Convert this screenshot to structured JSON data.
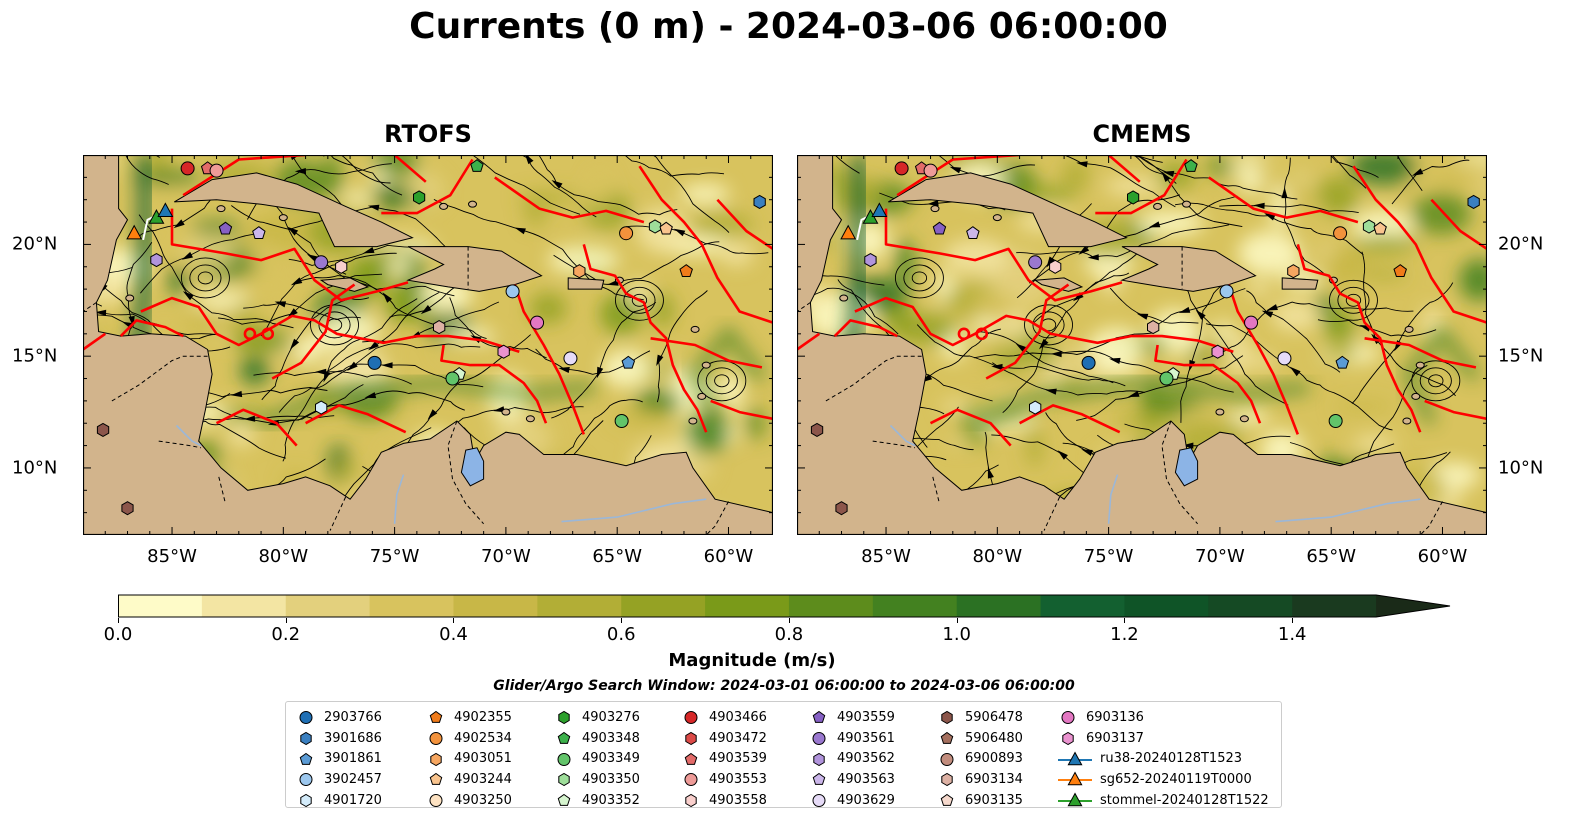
{
  "title": "Currents (0 m) - 2024-03-06 06:00:00",
  "panels": [
    {
      "title": "RTOFS",
      "seed": 7
    },
    {
      "title": "CMEMS",
      "seed": 23
    }
  ],
  "map": {
    "lon_range": [
      -89,
      -58
    ],
    "lat_range": [
      7,
      24
    ],
    "lon_ticks": [
      "85°W",
      "80°W",
      "75°W",
      "70°W",
      "65°W",
      "60°W"
    ],
    "lon_tick_values": [
      -85,
      -80,
      -75,
      -70,
      -65,
      -60
    ],
    "lat_ticks": [
      "20°N",
      "15°N",
      "10°N"
    ],
    "lat_tick_values": [
      20,
      15,
      10
    ],
    "colors": {
      "land": "#d2b48c",
      "boundary": "#ff0000",
      "streamline": "#000000",
      "lake": "#8cb4e6"
    }
  },
  "colorbar": {
    "label": "Magnitude (m/s)",
    "ticks": [
      "0.0",
      "0.2",
      "0.4",
      "0.6",
      "0.8",
      "1.0",
      "1.2",
      "1.4"
    ],
    "range": [
      0,
      1.5
    ],
    "colors": [
      "#fefbc8",
      "#f3e5a3",
      "#e3d07d",
      "#d8c35e",
      "#c8b747",
      "#b2ae36",
      "#95a224",
      "#7a9a19",
      "#5d8c1c",
      "#438120",
      "#2b7123",
      "#136030",
      "#0f5427",
      "#154a24",
      "#1a3a1f",
      "#1a2a18"
    ]
  },
  "search_window": "Glider/Argo Search Window: 2024-03-01 06:00:00 to 2024-03-06 06:00:00",
  "legend": [
    [
      {
        "label": "2903766",
        "marker": "circle",
        "color": "#1f6fb4"
      },
      {
        "label": "3901686",
        "marker": "hexagon",
        "color": "#3a7fc0"
      },
      {
        "label": "3901861",
        "marker": "pentagon",
        "color": "#5b9bd5"
      },
      {
        "label": "3902457",
        "marker": "circle",
        "color": "#9cc7ee"
      },
      {
        "label": "4901720",
        "marker": "hexagon",
        "color": "#d4ecfb"
      }
    ],
    [
      {
        "label": "4902355",
        "marker": "pentagon",
        "color": "#f07b1a"
      },
      {
        "label": "4902534",
        "marker": "circle",
        "color": "#f2923c"
      },
      {
        "label": "4903051",
        "marker": "hexagon",
        "color": "#f6a660"
      },
      {
        "label": "4903244",
        "marker": "pentagon",
        "color": "#f9c48e"
      },
      {
        "label": "4903250",
        "marker": "circle",
        "color": "#fde2c2"
      }
    ],
    [
      {
        "label": "4903276",
        "marker": "hexagon",
        "color": "#2ca02c"
      },
      {
        "label": "4903348",
        "marker": "pentagon",
        "color": "#3cb14b"
      },
      {
        "label": "4903349",
        "marker": "circle",
        "color": "#62c46a"
      },
      {
        "label": "4903350",
        "marker": "hexagon",
        "color": "#9ede9a"
      },
      {
        "label": "4903352",
        "marker": "pentagon",
        "color": "#d6f5cf"
      }
    ],
    [
      {
        "label": "4903466",
        "marker": "circle",
        "color": "#d62728"
      },
      {
        "label": "4903472",
        "marker": "hexagon",
        "color": "#dc4a47"
      },
      {
        "label": "4903539",
        "marker": "pentagon",
        "color": "#e36b69"
      },
      {
        "label": "4903553",
        "marker": "circle",
        "color": "#ee9b98"
      },
      {
        "label": "4903558",
        "marker": "hexagon",
        "color": "#f9cfcc"
      }
    ],
    [
      {
        "label": "4903559",
        "marker": "pentagon",
        "color": "#8660c4"
      },
      {
        "label": "4903561",
        "marker": "circle",
        "color": "#9a78cf"
      },
      {
        "label": "4903562",
        "marker": "hexagon",
        "color": "#b194dc"
      },
      {
        "label": "4903563",
        "marker": "pentagon",
        "color": "#cbb6ea"
      },
      {
        "label": "4903629",
        "marker": "circle",
        "color": "#e6dbf7"
      }
    ],
    [
      {
        "label": "5906478",
        "marker": "hexagon",
        "color": "#8c564b"
      },
      {
        "label": "5906480",
        "marker": "pentagon",
        "color": "#a5705f"
      },
      {
        "label": "6900893",
        "marker": "circle",
        "color": "#c28d7e"
      },
      {
        "label": "6903134",
        "marker": "hexagon",
        "color": "#ddb1a4"
      },
      {
        "label": "6903135",
        "marker": "pentagon",
        "color": "#f6d9cd"
      }
    ],
    [
      {
        "label": "6903136",
        "marker": "circle",
        "color": "#e377c2"
      },
      {
        "label": "6903137",
        "marker": "hexagon",
        "color": "#ea92cf"
      },
      {
        "label": "ru38-20240128T1523",
        "marker": "triangle-line",
        "color": "#1f77b4"
      },
      {
        "label": "sg652-20240119T0000",
        "marker": "triangle-line",
        "color": "#ff7f0e"
      },
      {
        "label": "stommel-20240128T1522",
        "marker": "triangle-line",
        "color": "#2ca02c"
      }
    ]
  ],
  "floats": [
    {
      "lon": -84.3,
      "lat": 23.4,
      "legend": "4903466"
    },
    {
      "lon": -83.4,
      "lat": 23.4,
      "legend": "4903539"
    },
    {
      "lon": -83.0,
      "lat": 23.3,
      "legend": "4903553"
    },
    {
      "lon": -71.3,
      "lat": 23.5,
      "legend": "4903348"
    },
    {
      "lon": -73.9,
      "lat": 22.1,
      "legend": "4903276"
    },
    {
      "lon": -58.6,
      "lat": 21.9,
      "legend": "3901686"
    },
    {
      "lon": -82.6,
      "lat": 20.7,
      "legend": "4903559"
    },
    {
      "lon": -81.1,
      "lat": 20.5,
      "legend": "4903563"
    },
    {
      "lon": -85.7,
      "lat": 19.3,
      "legend": "4903562"
    },
    {
      "lon": -78.3,
      "lat": 19.2,
      "legend": "4903561"
    },
    {
      "lon": -77.4,
      "lat": 19.0,
      "legend": "4903558"
    },
    {
      "lon": -64.6,
      "lat": 20.5,
      "legend": "4902534"
    },
    {
      "lon": -63.3,
      "lat": 20.8,
      "legend": "4903350"
    },
    {
      "lon": -62.8,
      "lat": 20.7,
      "legend": "4903244"
    },
    {
      "lon": -66.7,
      "lat": 18.8,
      "legend": "4903051"
    },
    {
      "lon": -61.9,
      "lat": 18.8,
      "legend": "4902355"
    },
    {
      "lon": -69.7,
      "lat": 17.9,
      "legend": "3902457"
    },
    {
      "lon": -73.0,
      "lat": 16.3,
      "legend": "6903134"
    },
    {
      "lon": -68.6,
      "lat": 16.5,
      "legend": "6903136"
    },
    {
      "lon": -70.1,
      "lat": 15.2,
      "legend": "6903137"
    },
    {
      "lon": -67.1,
      "lat": 14.9,
      "legend": "4903629"
    },
    {
      "lon": -64.5,
      "lat": 14.7,
      "legend": "3901861"
    },
    {
      "lon": -75.9,
      "lat": 14.7,
      "legend": "2903766"
    },
    {
      "lon": -72.1,
      "lat": 14.2,
      "legend": "4903352"
    },
    {
      "lon": -72.4,
      "lat": 14.0,
      "legend": "4903349"
    },
    {
      "lon": -78.3,
      "lat": 12.7,
      "legend": "4901720"
    },
    {
      "lon": -64.8,
      "lat": 12.1,
      "legend": "4903349"
    },
    {
      "lon": -88.1,
      "lat": 11.7,
      "legend": "5906478"
    },
    {
      "lon": -87.0,
      "lat": 8.2,
      "legend": "5906478"
    }
  ],
  "gliders": [
    {
      "lon": -86.7,
      "lat": 20.5,
      "legend": "sg652-20240119T0000"
    },
    {
      "lon": -85.7,
      "lat": 21.2,
      "legend": "stommel-20240128T1522"
    },
    {
      "lon": -85.3,
      "lat": 21.5,
      "legend": "ru38-20240128T1523"
    }
  ]
}
